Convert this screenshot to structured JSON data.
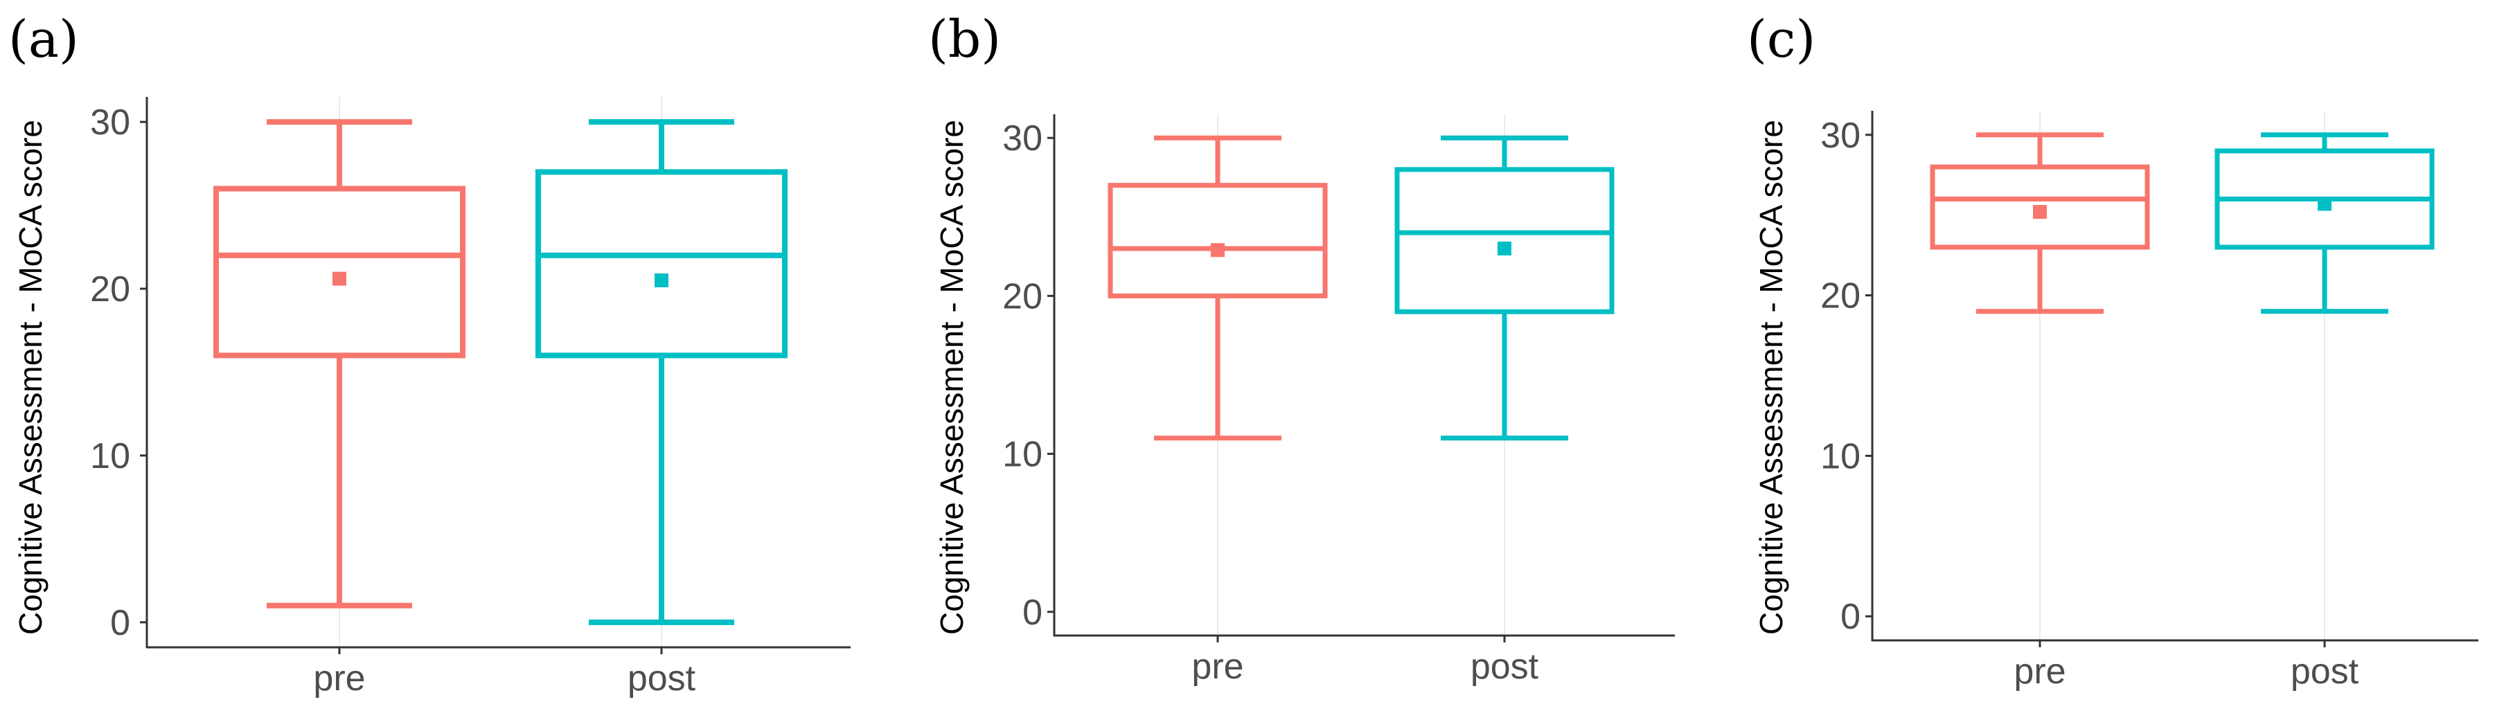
{
  "colors": {
    "pre": "#F8766D",
    "post": "#00BFC4",
    "axis": "#333333",
    "grid": "#ebebeb"
  },
  "chart_data": [
    {
      "type": "box",
      "panel": "(a)",
      "ylabel": "Cognitive Assessment - MoCA score",
      "xlabel": "",
      "categories": [
        "pre",
        "post"
      ],
      "yticks": [
        0,
        10,
        20,
        30
      ],
      "ylim": [
        -1.5,
        31.5
      ],
      "grid": "vertical",
      "series": [
        {
          "name": "pre",
          "min": 1,
          "q1": 16,
          "median": 22,
          "q3": 26,
          "max": 30,
          "mean": 20.6
        },
        {
          "name": "post",
          "min": 0,
          "q1": 16,
          "median": 22,
          "q3": 27,
          "max": 30,
          "mean": 20.5
        }
      ]
    },
    {
      "type": "box",
      "panel": "(b)",
      "ylabel": "Cognitive Assessment - MoCA score",
      "xlabel": "",
      "categories": [
        "pre",
        "post"
      ],
      "yticks": [
        0,
        10,
        20,
        30
      ],
      "ylim": [
        -1.5,
        31.5
      ],
      "grid": "vertical",
      "series": [
        {
          "name": "pre",
          "min": 11,
          "q1": 20,
          "median": 23,
          "q3": 27,
          "max": 30,
          "mean": 22.9
        },
        {
          "name": "post",
          "min": 11,
          "q1": 19,
          "median": 24,
          "q3": 28,
          "max": 30,
          "mean": 23.0
        }
      ]
    },
    {
      "type": "box",
      "panel": "(c)",
      "ylabel": "Cognitive Assessment - MoCA score",
      "xlabel": "",
      "categories": [
        "pre",
        "post"
      ],
      "yticks": [
        0,
        10,
        20,
        30
      ],
      "ylim": [
        -1.5,
        31.5
      ],
      "grid": "vertical",
      "series": [
        {
          "name": "pre",
          "min": 19,
          "q1": 23,
          "median": 26,
          "q3": 28,
          "max": 30,
          "mean": 25.2
        },
        {
          "name": "post",
          "min": 19,
          "q1": 23,
          "median": 26,
          "q3": 29,
          "max": 30,
          "mean": 25.7
        }
      ]
    }
  ]
}
